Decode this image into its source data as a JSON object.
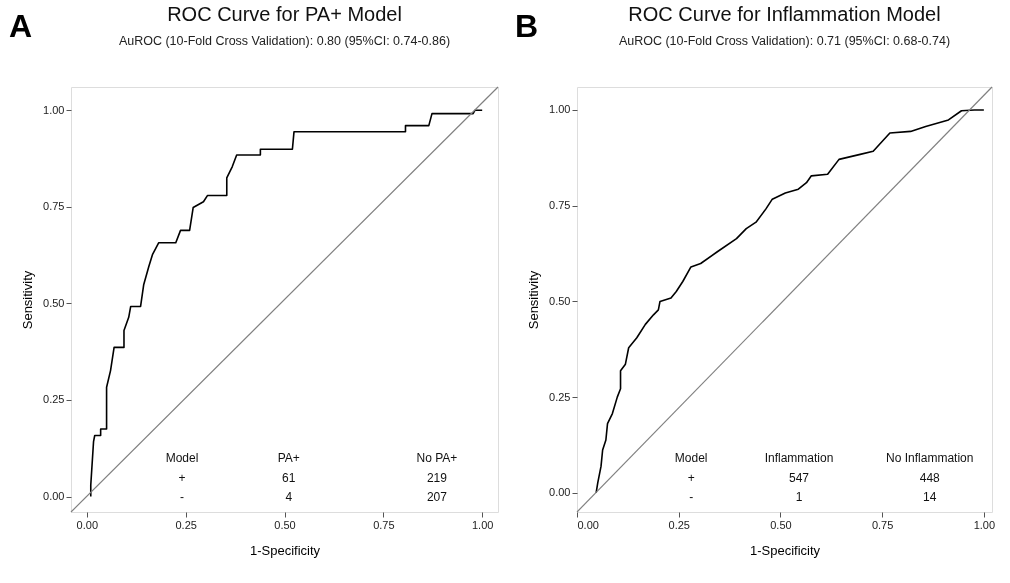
{
  "chart_data": [
    {
      "type": "line",
      "title": "ROC Curve for PA+ Model",
      "subtitle": "AuROC (10-Fold Cross Validation): 0.80 (95%CI: 0.74-0.86)",
      "xlabel": "1-Specificity",
      "ylabel": "Sensitivity",
      "xlim": [
        -0.04,
        1.04
      ],
      "ylim": [
        -0.04,
        1.06
      ],
      "xticks": [
        {
          "value": 0,
          "label": "0.00"
        },
        {
          "value": 0.25,
          "label": "0.25"
        },
        {
          "value": 0.5,
          "label": "0.50"
        },
        {
          "value": 0.75,
          "label": "0.75"
        },
        {
          "value": 1,
          "label": "1.00"
        }
      ],
      "yticks": [
        {
          "value": 0,
          "label": "0.00"
        },
        {
          "value": 0.25,
          "label": "0.25"
        },
        {
          "value": 0.5,
          "label": "0.50"
        },
        {
          "value": 0.75,
          "label": "0.75"
        },
        {
          "value": 1,
          "label": "1.00"
        }
      ],
      "grid": false,
      "annotations": [
        "A",
        "Model",
        "PA+",
        "No PA+",
        "+",
        "61",
        "219",
        "-",
        "4",
        "207"
      ],
      "series": [
        {
          "color": "#000000",
          "x": [
            0.01,
            0.01,
            0.017,
            0.02,
            0.035,
            0.035,
            0.05,
            0.05,
            0.06,
            0.069,
            0.094,
            0.094,
            0.106,
            0.111,
            0.136,
            0.144,
            0.157,
            0.166,
            0.182,
            0.225,
            0.237,
            0.26,
            0.269,
            0.295,
            0.305,
            0.354,
            0.354,
            0.368,
            0.379,
            0.439,
            0.439,
            0.52,
            0.524,
            0.806,
            0.806,
            0.865,
            0.873,
            0.977,
            0.982,
            1.0
          ],
          "values": [
            0.0,
            0.03,
            0.142,
            0.158,
            0.158,
            0.175,
            0.175,
            0.283,
            0.326,
            0.386,
            0.386,
            0.43,
            0.464,
            0.492,
            0.492,
            0.549,
            0.596,
            0.626,
            0.657,
            0.657,
            0.689,
            0.689,
            0.748,
            0.763,
            0.779,
            0.779,
            0.825,
            0.854,
            0.884,
            0.884,
            0.899,
            0.899,
            0.944,
            0.944,
            0.96,
            0.96,
            0.991,
            0.991,
            1.0,
            1.0
          ]
        },
        {
          "color": "#808080",
          "x": [
            -0.04,
            1.04
          ],
          "values": [
            -0.04,
            1.06
          ]
        }
      ]
    },
    {
      "type": "line",
      "title": "ROC Curve for Inflammation Model",
      "subtitle": "AuROC (10-Fold Cross Validation): 0.71 (95%CI: 0.68-0.74)",
      "xlabel": "1-Specificity",
      "ylabel": "Sensitivity",
      "xlim": [
        0,
        1.02
      ],
      "ylim": [
        -0.05,
        1.06
      ],
      "xticks": [
        {
          "value": 0,
          "label": "0.00"
        },
        {
          "value": 0.25,
          "label": "0.25"
        },
        {
          "value": 0.5,
          "label": "0.50"
        },
        {
          "value": 0.75,
          "label": "0.75"
        },
        {
          "value": 1,
          "label": "1.00"
        }
      ],
      "yticks": [
        {
          "value": 0,
          "label": "0.00"
        },
        {
          "value": 0.25,
          "label": "0.25"
        },
        {
          "value": 0.5,
          "label": "0.50"
        },
        {
          "value": 0.75,
          "label": "0.75"
        },
        {
          "value": 1,
          "label": "1.00"
        }
      ],
      "grid": false,
      "annotations": [
        "B",
        "Model",
        "Inflammation",
        "No Inflammation",
        "+",
        "547",
        "448",
        "-",
        "1",
        "14"
      ],
      "series": [
        {
          "color": "#000000",
          "x": [
            0.047,
            0.051,
            0.059,
            0.063,
            0.071,
            0.075,
            0.087,
            0.099,
            0.107,
            0.107,
            0.119,
            0.127,
            0.147,
            0.168,
            0.188,
            0.2,
            0.204,
            0.231,
            0.244,
            0.26,
            0.28,
            0.304,
            0.344,
            0.392,
            0.416,
            0.44,
            0.464,
            0.48,
            0.512,
            0.544,
            0.564,
            0.576,
            0.616,
            0.644,
            0.696,
            0.728,
            0.769,
            0.82,
            0.857,
            0.913,
            0.945,
            0.977,
            1.0
          ],
          "values": [
            0.0,
            0.026,
            0.069,
            0.112,
            0.138,
            0.181,
            0.207,
            0.25,
            0.272,
            0.319,
            0.336,
            0.379,
            0.405,
            0.44,
            0.465,
            0.478,
            0.5,
            0.509,
            0.526,
            0.552,
            0.59,
            0.599,
            0.629,
            0.664,
            0.69,
            0.707,
            0.741,
            0.767,
            0.783,
            0.793,
            0.81,
            0.828,
            0.832,
            0.871,
            0.884,
            0.892,
            0.94,
            0.944,
            0.957,
            0.974,
            0.998,
            1.0,
            1.0
          ]
        },
        {
          "color": "#808080",
          "x": [
            0,
            1.02
          ],
          "values": [
            -0.05,
            1.06
          ]
        }
      ]
    }
  ]
}
